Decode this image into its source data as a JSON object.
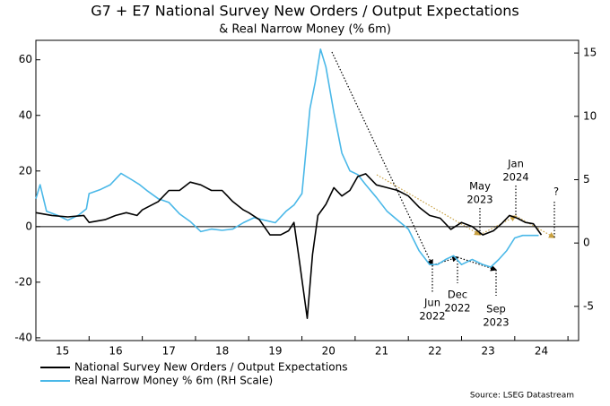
{
  "chart_data": {
    "type": "line",
    "title": "G7 + E7 National Survey New Orders / Output Expectations",
    "subtitle": "& Real Narrow Money (% 6m)",
    "source": "Source: LSEG Datastream",
    "xlim": [
      2015,
      2025.2
    ],
    "xticks": [
      {
        "value": 2015.5,
        "label": "15"
      },
      {
        "value": 2016.5,
        "label": "16"
      },
      {
        "value": 2017.5,
        "label": "17"
      },
      {
        "value": 2018.5,
        "label": "18"
      },
      {
        "value": 2019.5,
        "label": "19"
      },
      {
        "value": 2020.5,
        "label": "20"
      },
      {
        "value": 2021.5,
        "label": "21"
      },
      {
        "value": 2022.5,
        "label": "22"
      },
      {
        "value": 2023.5,
        "label": "23"
      },
      {
        "value": 2024.5,
        "label": "24"
      }
    ],
    "xtick_marks": [
      2015,
      2016,
      2017,
      2018,
      2019,
      2020,
      2021,
      2022,
      2023,
      2024,
      2025
    ],
    "ylim": [
      -41,
      67
    ],
    "yticks": [
      -40,
      -20,
      0,
      20,
      40,
      60
    ],
    "y2lim": [
      -7.7,
      16
    ],
    "y2ticks": [
      -5,
      0,
      5,
      10,
      15
    ],
    "series": [
      {
        "name": "National Survey New Orders / Output Expectations",
        "color": "#000000",
        "x": [
          2015.0,
          2015.3,
          2015.6,
          2015.9,
          2016.0,
          2016.3,
          2016.5,
          2016.7,
          2016.9,
          2017.0,
          2017.3,
          2017.5,
          2017.7,
          2017.9,
          2018.1,
          2018.3,
          2018.5,
          2018.7,
          2018.9,
          2019.0,
          2019.2,
          2019.4,
          2019.6,
          2019.75,
          2019.85,
          2019.95,
          2020.1,
          2020.2,
          2020.3,
          2020.45,
          2020.6,
          2020.75,
          2020.9,
          2021.05,
          2021.2,
          2021.4,
          2021.6,
          2021.8,
          2022.0,
          2022.2,
          2022.4,
          2022.6,
          2022.8,
          2023.0,
          2023.2,
          2023.4,
          2023.6,
          2023.75,
          2023.9,
          2024.05,
          2024.2,
          2024.35,
          2024.5
        ],
        "values": [
          5,
          4,
          3.5,
          4,
          1.5,
          2.5,
          4,
          5,
          4,
          6,
          9,
          13,
          13,
          16,
          15,
          13,
          13,
          9,
          6,
          5,
          2.5,
          -3,
          -3,
          -1.5,
          1.5,
          -12,
          -33,
          -10,
          4,
          8,
          14,
          11,
          13,
          18,
          19,
          15,
          14,
          13,
          11,
          7,
          4,
          3,
          -1,
          1.5,
          0,
          -3,
          -1.5,
          1,
          4,
          3,
          1.5,
          1,
          -3
        ]
      },
      {
        "name": "Real Narrow Money % 6m (RH Scale)",
        "color": "#4ab8e8",
        "axis": "y2",
        "x": [
          2015.0,
          2015.08,
          2015.2,
          2015.4,
          2015.6,
          2015.8,
          2015.95,
          2016.0,
          2016.2,
          2016.4,
          2016.6,
          2016.8,
          2016.95,
          2017.1,
          2017.3,
          2017.5,
          2017.7,
          2017.9,
          2018.1,
          2018.3,
          2018.5,
          2018.7,
          2018.9,
          2019.1,
          2019.3,
          2019.5,
          2019.7,
          2019.85,
          2020.0,
          2020.15,
          2020.25,
          2020.35,
          2020.45,
          2020.6,
          2020.75,
          2020.9,
          2021.05,
          2021.2,
          2021.4,
          2021.6,
          2021.8,
          2022.0,
          2022.2,
          2022.4,
          2022.55,
          2022.7,
          2022.85,
          2023.0,
          2023.2,
          2023.4,
          2023.55,
          2023.7,
          2023.85,
          2024.0,
          2024.15,
          2024.3,
          2024.45
        ],
        "values": [
          3.5,
          4.6,
          2.5,
          2.2,
          1.8,
          2.2,
          2.7,
          3.9,
          4.2,
          4.6,
          5.5,
          5,
          4.6,
          4.1,
          3.5,
          3.2,
          2.3,
          1.7,
          0.9,
          1.1,
          1.0,
          1.1,
          1.6,
          2,
          1.8,
          1.6,
          2.5,
          3,
          3.9,
          10.6,
          12.7,
          15.3,
          13.9,
          10.3,
          7.1,
          5.7,
          5.4,
          4.6,
          3.6,
          2.5,
          1.8,
          1.1,
          -0.6,
          -1.7,
          -1.7,
          -1.3,
          -1,
          -1.7,
          -1.3,
          -1.7,
          -1.9,
          -1.3,
          -0.6,
          0.4,
          0.6,
          0.6,
          0.6
        ]
      }
    ],
    "annotations": [
      {
        "text": [
          "May",
          "2023"
        ]
      },
      {
        "text": [
          "Jan",
          "2024"
        ]
      },
      {
        "text": [
          "?"
        ]
      },
      {
        "text": [
          "Jun",
          "2022"
        ]
      },
      {
        "text": [
          "Dec",
          "2022"
        ]
      },
      {
        "text": [
          "Sep",
          "2023"
        ]
      }
    ]
  }
}
